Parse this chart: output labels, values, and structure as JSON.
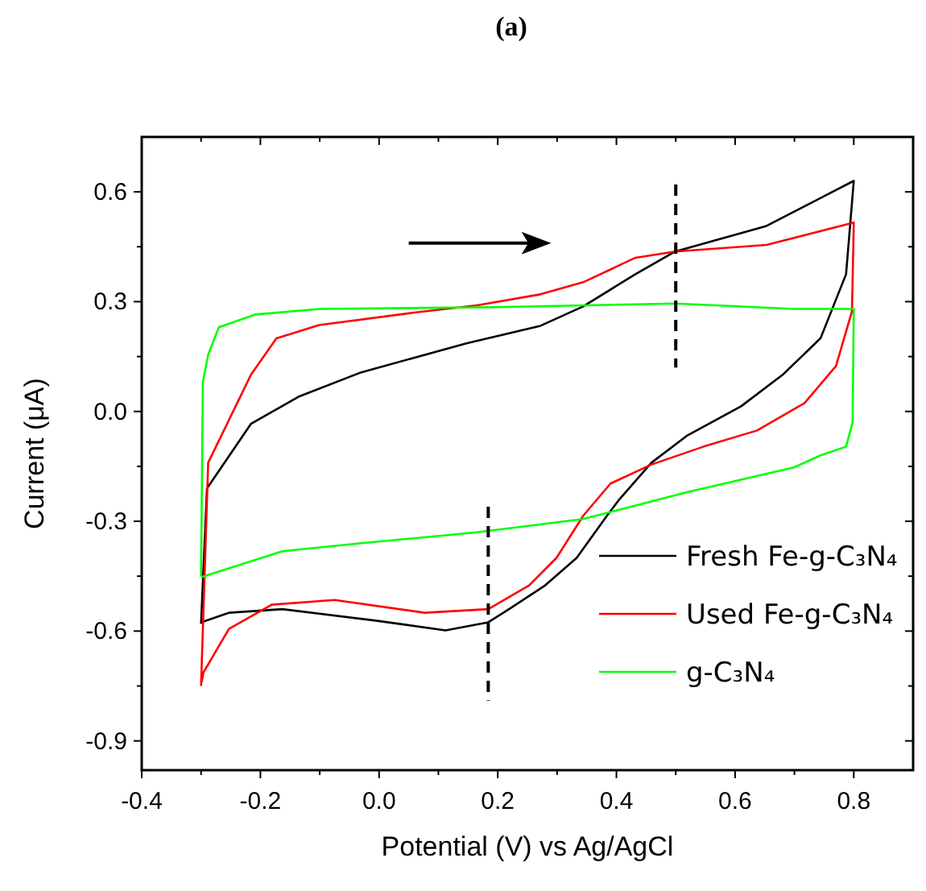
{
  "chart_data": {
    "type": "line",
    "title": "(a)",
    "xlabel": "Potential (V) vs Ag/AgCl",
    "ylabel": "Current (μA)",
    "xlim": [
      -0.4,
      0.9
    ],
    "ylim": [
      -0.98,
      0.75
    ],
    "xticks": [
      -0.4,
      {
        "value": -0.3,
        "label": null
      },
      -0.2,
      {
        "value": -0.1,
        "label": null
      },
      {
        "value": 0,
        "label": "0.0"
      },
      {
        "value": 0.1,
        "label": null
      },
      0.2,
      {
        "value": 0.3,
        "label": null
      },
      0.4,
      {
        "value": 0.5,
        "label": null
      },
      0.6,
      {
        "value": 0.7,
        "label": null
      },
      0.8
    ],
    "yticks": [
      -0.9,
      {
        "value": -0.75,
        "label": null
      },
      -0.6,
      {
        "value": -0.45,
        "label": null
      },
      -0.3,
      {
        "value": -0.15,
        "label": null
      },
      {
        "value": 0,
        "label": "0.0"
      },
      {
        "value": 0.15,
        "label": null
      },
      0.3,
      {
        "value": 0.45,
        "label": null
      },
      0.6
    ],
    "grid": false,
    "legend": "bottom right",
    "marker": "none",
    "series": [
      {
        "name": "Fresh Fe-g-C₃N₄",
        "color": "#000000",
        "x": [
          -0.3,
          -0.29,
          -0.216,
          -0.136,
          -0.03,
          0.147,
          0.272,
          0.344,
          0.432,
          0.499,
          0.653,
          0.8,
          0.787,
          0.744,
          0.68,
          0.61,
          0.52,
          0.459,
          0.405,
          0.384,
          0.333,
          0.28,
          0.219,
          0.184,
          0.112,
          -0.003,
          -0.163,
          -0.253,
          -0.298
        ],
        "values": [
          -0.58,
          -0.21,
          -0.034,
          0.04,
          0.107,
          0.186,
          0.234,
          0.287,
          0.375,
          0.437,
          0.507,
          0.63,
          0.375,
          0.2,
          0.1,
          0.014,
          -0.065,
          -0.14,
          -0.24,
          -0.285,
          -0.4,
          -0.475,
          -0.54,
          -0.576,
          -0.598,
          -0.572,
          -0.54,
          -0.55,
          -0.575
        ]
      },
      {
        "name": "Used Fe-g-C₃N₄",
        "color": "#ff0000",
        "x": [
          -0.3,
          -0.288,
          -0.216,
          -0.173,
          -0.101,
          0.059,
          0.165,
          0.272,
          0.344,
          0.432,
          0.499,
          0.653,
          0.8,
          0.797,
          0.77,
          0.717,
          0.637,
          0.547,
          0.459,
          0.39,
          0.344,
          0.299,
          0.253,
          0.184,
          0.077,
          -0.075,
          -0.181,
          -0.253,
          -0.296,
          -0.299
        ],
        "values": [
          -0.75,
          -0.14,
          0.1,
          0.2,
          0.236,
          0.27,
          0.29,
          0.32,
          0.353,
          0.42,
          0.437,
          0.455,
          0.516,
          0.274,
          0.124,
          0.023,
          -0.052,
          -0.096,
          -0.145,
          -0.197,
          -0.285,
          -0.4,
          -0.475,
          -0.54,
          -0.55,
          -0.515,
          -0.528,
          -0.594,
          -0.713,
          -0.74
        ]
      },
      {
        "name": "g-C₃N₄",
        "color": "#00ff00",
        "x": [
          -0.3,
          -0.297,
          -0.288,
          -0.27,
          -0.208,
          -0.1,
          0.2,
          0.5,
          0.7,
          0.8,
          0.798,
          0.787,
          0.744,
          0.699,
          0.52,
          0.344,
          0.165,
          -0.03,
          -0.163,
          -0.3
        ],
        "values": [
          -0.45,
          0.08,
          0.155,
          0.23,
          0.265,
          0.28,
          0.285,
          0.295,
          0.28,
          0.28,
          -0.03,
          -0.096,
          -0.12,
          -0.153,
          -0.22,
          -0.294,
          -0.33,
          -0.36,
          -0.382,
          -0.453
        ]
      },
      {
        "color": "#000000",
        "line_style": "dashed",
        "x": [
          0.5,
          0.5
        ],
        "values": [
          0.62,
          0.12
        ]
      },
      {
        "color": "#000000",
        "line_style": "dashed",
        "x": [
          0.184,
          0.184
        ],
        "values": [
          -0.26,
          -0.79
        ]
      }
    ]
  }
}
